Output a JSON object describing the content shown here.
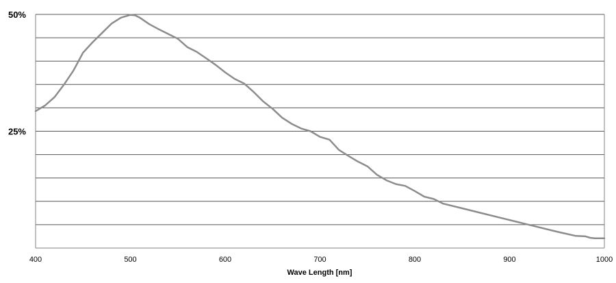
{
  "chart_data": {
    "type": "line",
    "title": "",
    "xlabel": "Wave Length [nm]",
    "ylabel": "",
    "xlim": [
      400,
      1000
    ],
    "ylim": [
      0,
      50
    ],
    "x_ticks": [
      400,
      500,
      600,
      700,
      800,
      900,
      1000
    ],
    "x_tick_labels": [
      "400",
      "500",
      "600",
      "700",
      "800",
      "900",
      "1000"
    ],
    "y_ticks": [
      25,
      50
    ],
    "y_tick_labels": [
      "25%",
      "50%"
    ],
    "y_gridlines": [
      5,
      10,
      15,
      20,
      25,
      30,
      35,
      40,
      45,
      50
    ],
    "grid": true,
    "legend": "none",
    "colors": {
      "line": "#8c8c8c",
      "grid": "#555555",
      "frame": "#808080"
    },
    "series": [
      {
        "x": [
          400,
          410,
          420,
          430,
          440,
          450,
          460,
          470,
          480,
          490,
          500,
          505,
          510,
          520,
          530,
          540,
          550,
          560,
          570,
          580,
          590,
          600,
          610,
          620,
          630,
          640,
          650,
          660,
          670,
          680,
          690,
          700,
          710,
          720,
          730,
          740,
          750,
          760,
          770,
          780,
          790,
          800,
          810,
          820,
          830,
          850,
          870,
          890,
          910,
          930,
          950,
          970,
          980,
          985,
          990,
          1000
        ],
        "values": [
          29.3,
          30.5,
          32.3,
          35.0,
          38.0,
          41.8,
          44.0,
          46.0,
          48.0,
          49.3,
          49.9,
          49.8,
          49.3,
          47.9,
          46.8,
          45.8,
          44.8,
          43.0,
          42.0,
          40.6,
          39.2,
          37.6,
          36.2,
          35.2,
          33.4,
          31.4,
          29.8,
          27.9,
          26.6,
          25.6,
          25.0,
          23.8,
          23.2,
          21.0,
          19.7,
          18.5,
          17.5,
          15.7,
          14.5,
          13.7,
          13.3,
          12.2,
          11.0,
          10.5,
          9.5,
          8.5,
          7.5,
          6.5,
          5.5,
          4.5,
          3.5,
          2.6,
          2.5,
          2.2,
          2.1,
          2.1
        ]
      }
    ]
  }
}
